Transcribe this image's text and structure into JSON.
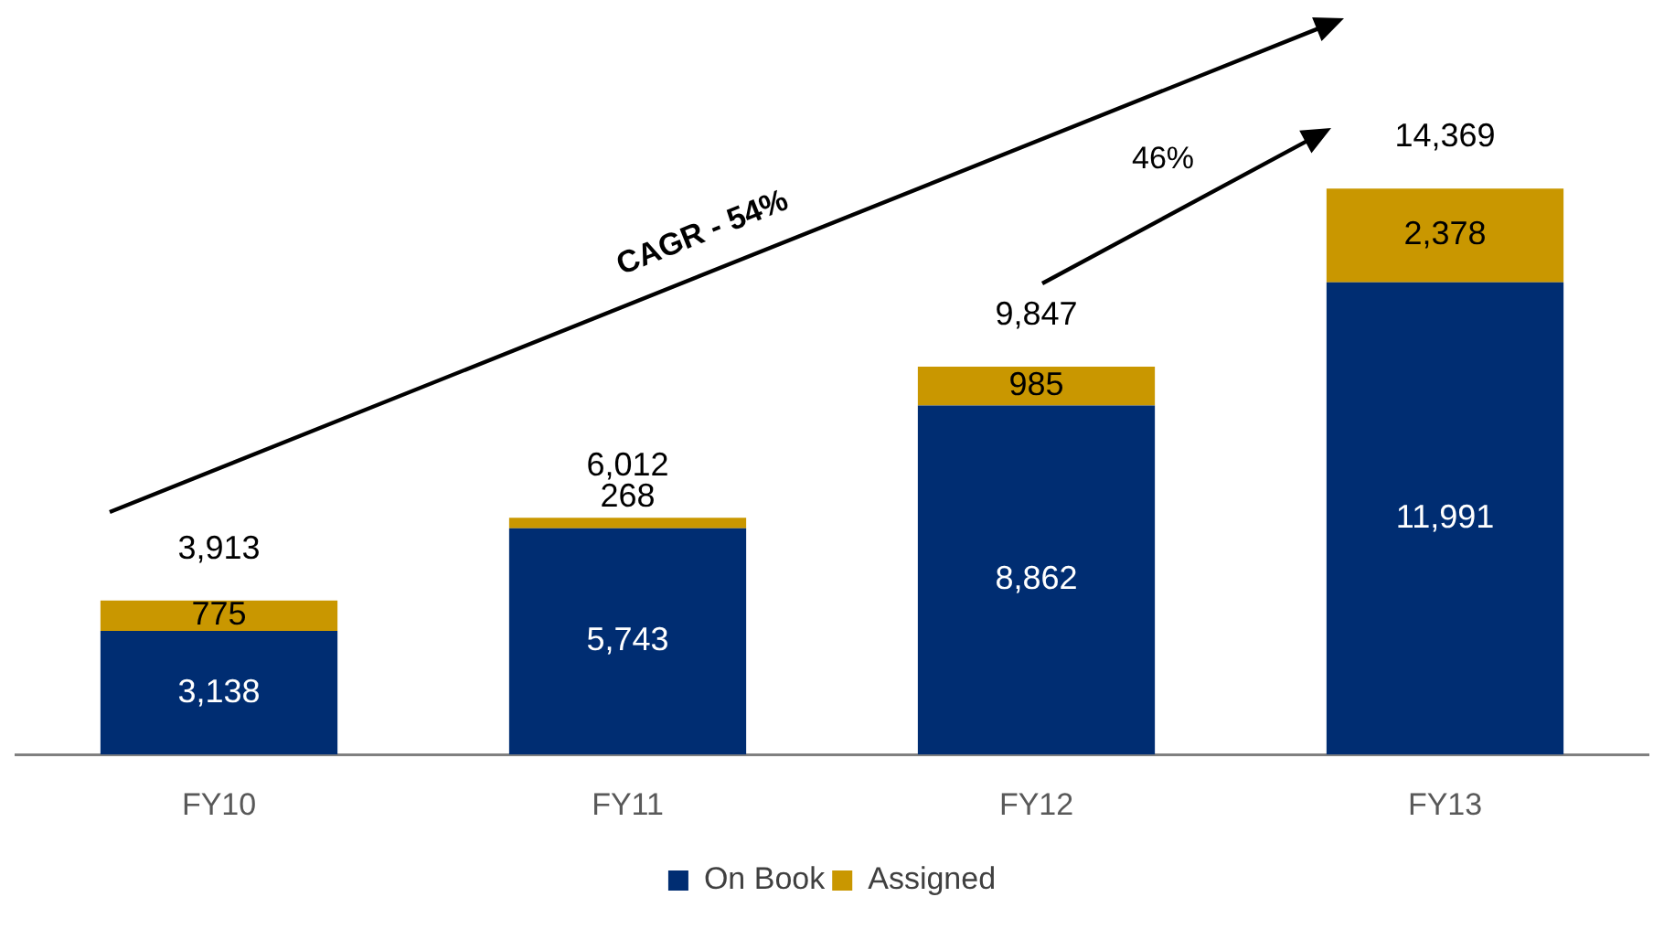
{
  "chart_data": {
    "type": "bar",
    "stacked": true,
    "categories": [
      "FY10",
      "FY11",
      "FY12",
      "FY13"
    ],
    "series": [
      {
        "name": "On Book",
        "color": "#002d72",
        "values": [
          3138,
          5743,
          8862,
          11991
        ],
        "value_labels": [
          "3,138",
          "5,743",
          "8,862",
          "11,991"
        ]
      },
      {
        "name": "Assigned",
        "color": "#c99700",
        "values": [
          775,
          268,
          985,
          2378
        ],
        "value_labels": [
          "775",
          "268",
          "985",
          "2,378"
        ]
      }
    ],
    "totals": [
      "3,913",
      "6,012",
      "9,847",
      "14,369"
    ],
    "legend": "bottom",
    "grid": false,
    "annotations": [
      "CAGR - 54%",
      "46%"
    ]
  }
}
